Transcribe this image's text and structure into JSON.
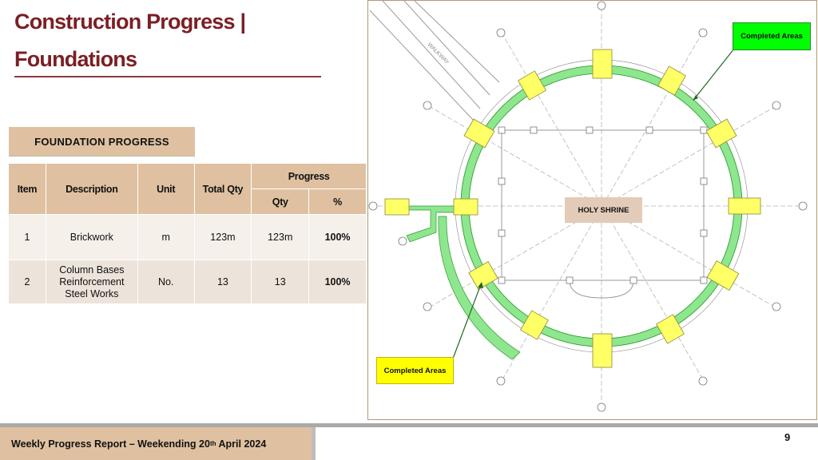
{
  "slide": {
    "title_line1": "Construction Progress |",
    "title_line2": "Foundations",
    "section_label": "FOUNDATION  PROGRESS",
    "page_number": "9"
  },
  "table": {
    "headers": {
      "item": "Item",
      "description": "Description",
      "unit": "Unit",
      "total_qty": "Total Qty",
      "progress": "Progress",
      "qty": "Qty",
      "percent": "%"
    },
    "rows": [
      {
        "item": "1",
        "description": "Brickwork",
        "unit": "m",
        "total_qty": "123m",
        "qty": "123m",
        "percent": "100%"
      },
      {
        "item": "2",
        "description": "Column Bases Reinforcement Steel Works",
        "unit": "No.",
        "total_qty": "13",
        "qty": "13",
        "percent": "100%"
      }
    ]
  },
  "drawing": {
    "callout_completed_top": "Completed Areas",
    "callout_completed_bottom": "Completed Areas",
    "center_label": "HOLY SHRINE",
    "walkway_label": "WALKWAY",
    "colors": {
      "completed_green": "#00ff00",
      "completed_yellow": "#ffff00",
      "ring_green": "#8ee68e"
    }
  },
  "footer": {
    "report_prefix": "Weekly Progress Report – Weekending 20",
    "report_sup": "th",
    "report_suffix": " April 2024"
  }
}
